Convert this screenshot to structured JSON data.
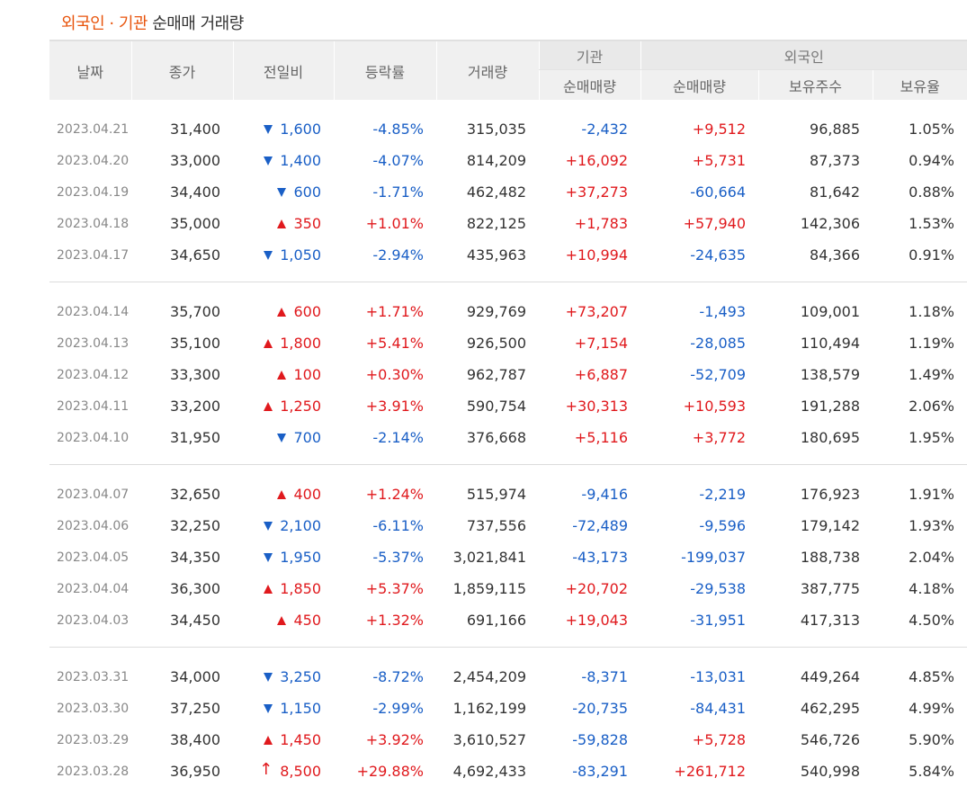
{
  "title": {
    "highlight": "외국인 · 기관",
    "rest": " 순매매 거래량"
  },
  "colors": {
    "up": "#e0191d",
    "down": "#1a5fc6",
    "accent": "#e8540c",
    "header_bg": "#f0f0f0"
  },
  "headers": {
    "date": "날짜",
    "close": "종가",
    "change": "전일비",
    "rate": "등락률",
    "volume": "거래량",
    "institution": "기관",
    "foreign": "외국인",
    "inst_net": "순매매량",
    "foreign_net": "순매매량",
    "foreign_shares": "보유주수",
    "foreign_ratio": "보유율"
  },
  "groups": [
    [
      {
        "date": "2023.04.21",
        "close": "31,400",
        "dir": "down",
        "change": "1,600",
        "rate": "-4.85%",
        "volume": "315,035",
        "inst": "-2,432",
        "foreign": "+9,512",
        "shares": "96,885",
        "ratio": "1.05%"
      },
      {
        "date": "2023.04.20",
        "close": "33,000",
        "dir": "down",
        "change": "1,400",
        "rate": "-4.07%",
        "volume": "814,209",
        "inst": "+16,092",
        "foreign": "+5,731",
        "shares": "87,373",
        "ratio": "0.94%"
      },
      {
        "date": "2023.04.19",
        "close": "34,400",
        "dir": "down",
        "change": "600",
        "rate": "-1.71%",
        "volume": "462,482",
        "inst": "+37,273",
        "foreign": "-60,664",
        "shares": "81,642",
        "ratio": "0.88%"
      },
      {
        "date": "2023.04.18",
        "close": "35,000",
        "dir": "up",
        "change": "350",
        "rate": "+1.01%",
        "volume": "822,125",
        "inst": "+1,783",
        "foreign": "+57,940",
        "shares": "142,306",
        "ratio": "1.53%"
      },
      {
        "date": "2023.04.17",
        "close": "34,650",
        "dir": "down",
        "change": "1,050",
        "rate": "-2.94%",
        "volume": "435,963",
        "inst": "+10,994",
        "foreign": "-24,635",
        "shares": "84,366",
        "ratio": "0.91%"
      }
    ],
    [
      {
        "date": "2023.04.14",
        "close": "35,700",
        "dir": "up",
        "change": "600",
        "rate": "+1.71%",
        "volume": "929,769",
        "inst": "+73,207",
        "foreign": "-1,493",
        "shares": "109,001",
        "ratio": "1.18%"
      },
      {
        "date": "2023.04.13",
        "close": "35,100",
        "dir": "up",
        "change": "1,800",
        "rate": "+5.41%",
        "volume": "926,500",
        "inst": "+7,154",
        "foreign": "-28,085",
        "shares": "110,494",
        "ratio": "1.19%"
      },
      {
        "date": "2023.04.12",
        "close": "33,300",
        "dir": "up",
        "change": "100",
        "rate": "+0.30%",
        "volume": "962,787",
        "inst": "+6,887",
        "foreign": "-52,709",
        "shares": "138,579",
        "ratio": "1.49%"
      },
      {
        "date": "2023.04.11",
        "close": "33,200",
        "dir": "up",
        "change": "1,250",
        "rate": "+3.91%",
        "volume": "590,754",
        "inst": "+30,313",
        "foreign": "+10,593",
        "shares": "191,288",
        "ratio": "2.06%"
      },
      {
        "date": "2023.04.10",
        "close": "31,950",
        "dir": "down",
        "change": "700",
        "rate": "-2.14%",
        "volume": "376,668",
        "inst": "+5,116",
        "foreign": "+3,772",
        "shares": "180,695",
        "ratio": "1.95%"
      }
    ],
    [
      {
        "date": "2023.04.07",
        "close": "32,650",
        "dir": "up",
        "change": "400",
        "rate": "+1.24%",
        "volume": "515,974",
        "inst": "-9,416",
        "foreign": "-2,219",
        "shares": "176,923",
        "ratio": "1.91%"
      },
      {
        "date": "2023.04.06",
        "close": "32,250",
        "dir": "down",
        "change": "2,100",
        "rate": "-6.11%",
        "volume": "737,556",
        "inst": "-72,489",
        "foreign": "-9,596",
        "shares": "179,142",
        "ratio": "1.93%"
      },
      {
        "date": "2023.04.05",
        "close": "34,350",
        "dir": "down",
        "change": "1,950",
        "rate": "-5.37%",
        "volume": "3,021,841",
        "inst": "-43,173",
        "foreign": "-199,037",
        "shares": "188,738",
        "ratio": "2.04%"
      },
      {
        "date": "2023.04.04",
        "close": "36,300",
        "dir": "up",
        "change": "1,850",
        "rate": "+5.37%",
        "volume": "1,859,115",
        "inst": "+20,702",
        "foreign": "-29,538",
        "shares": "387,775",
        "ratio": "4.18%"
      },
      {
        "date": "2023.04.03",
        "close": "34,450",
        "dir": "up",
        "change": "450",
        "rate": "+1.32%",
        "volume": "691,166",
        "inst": "+19,043",
        "foreign": "-31,951",
        "shares": "417,313",
        "ratio": "4.50%"
      }
    ],
    [
      {
        "date": "2023.03.31",
        "close": "34,000",
        "dir": "down",
        "change": "3,250",
        "rate": "-8.72%",
        "volume": "2,454,209",
        "inst": "-8,371",
        "foreign": "-13,031",
        "shares": "449,264",
        "ratio": "4.85%"
      },
      {
        "date": "2023.03.30",
        "close": "37,250",
        "dir": "down",
        "change": "1,150",
        "rate": "-2.99%",
        "volume": "1,162,199",
        "inst": "-20,735",
        "foreign": "-84,431",
        "shares": "462,295",
        "ratio": "4.99%"
      },
      {
        "date": "2023.03.29",
        "close": "38,400",
        "dir": "up",
        "change": "1,450",
        "rate": "+3.92%",
        "volume": "3,610,527",
        "inst": "-59,828",
        "foreign": "+5,728",
        "shares": "546,726",
        "ratio": "5.90%"
      },
      {
        "date": "2023.03.28",
        "close": "36,950",
        "dir": "limit-up",
        "change": "8,500",
        "rate": "+29.88%",
        "volume": "4,692,433",
        "inst": "-83,291",
        "foreign": "+261,712",
        "shares": "540,998",
        "ratio": "5.84%"
      }
    ]
  ]
}
